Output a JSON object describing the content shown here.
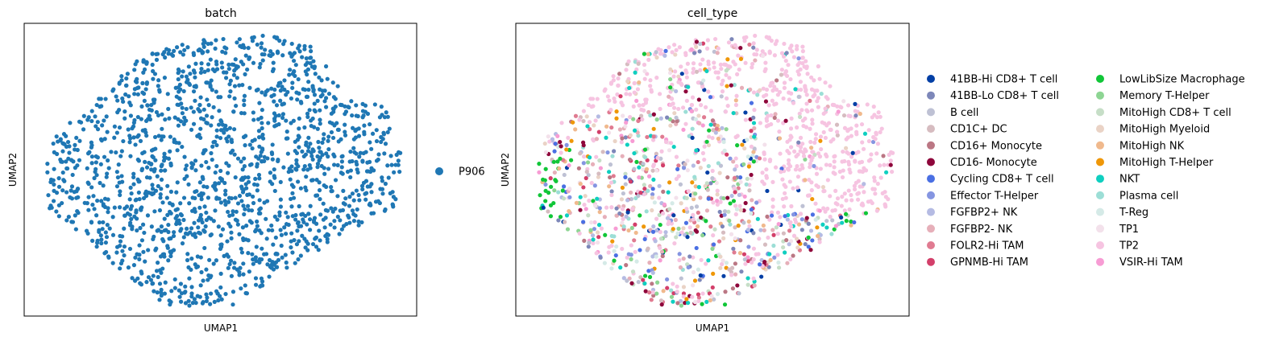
{
  "chart_data": [
    {
      "type": "scatter",
      "title": "batch",
      "xlabel": "UMAP1",
      "ylabel": "UMAP2",
      "x_ticks": [],
      "y_ticks": [],
      "grid": false,
      "legend_position": "right",
      "series": [
        {
          "name": "P906",
          "color": "#1f77b4"
        }
      ]
    },
    {
      "type": "scatter",
      "title": "cell_type",
      "xlabel": "UMAP1",
      "ylabel": "UMAP2",
      "x_ticks": [],
      "y_ticks": [],
      "grid": false,
      "legend_position": "right",
      "series": [
        {
          "name": "41BB-Hi CD8+ T cell",
          "color": "#023fa5"
        },
        {
          "name": "41BB-Lo CD8+ T cell",
          "color": "#7d87b9"
        },
        {
          "name": "B cell",
          "color": "#bec1d4"
        },
        {
          "name": "CD1C+ DC",
          "color": "#d6bcc0"
        },
        {
          "name": "CD16+ Monocyte",
          "color": "#bb7784"
        },
        {
          "name": "CD16- Monocyte",
          "color": "#8e063b"
        },
        {
          "name": "Cycling CD8+ T cell",
          "color": "#4a6fe3"
        },
        {
          "name": "Effector T-Helper",
          "color": "#8595e1"
        },
        {
          "name": "FGFBP2+ NK",
          "color": "#b5bbe3"
        },
        {
          "name": "FGFBP2- NK",
          "color": "#e6afb9"
        },
        {
          "name": "FOLR2-Hi TAM",
          "color": "#e07b91"
        },
        {
          "name": "GPNMB-Hi TAM",
          "color": "#d33f6a"
        },
        {
          "name": "LowLibSize Macrophage",
          "color": "#11c638"
        },
        {
          "name": "Memory T-Helper",
          "color": "#8dd593"
        },
        {
          "name": "MitoHigh CD8+ T cell",
          "color": "#c6dec7"
        },
        {
          "name": "MitoHigh Myeloid",
          "color": "#ead3c6"
        },
        {
          "name": "MitoHigh NK",
          "color": "#f0b98d"
        },
        {
          "name": "MitoHigh T-Helper",
          "color": "#ef9708"
        },
        {
          "name": "NKT",
          "color": "#0fcfc0"
        },
        {
          "name": "Plasma cell",
          "color": "#9cded6"
        },
        {
          "name": "T-Reg",
          "color": "#d5eae7"
        },
        {
          "name": "TP1",
          "color": "#f3e1eb"
        },
        {
          "name": "TP2",
          "color": "#f6c4e1"
        },
        {
          "name": "VSIR-Hi TAM",
          "color": "#f79cd4"
        }
      ]
    }
  ]
}
